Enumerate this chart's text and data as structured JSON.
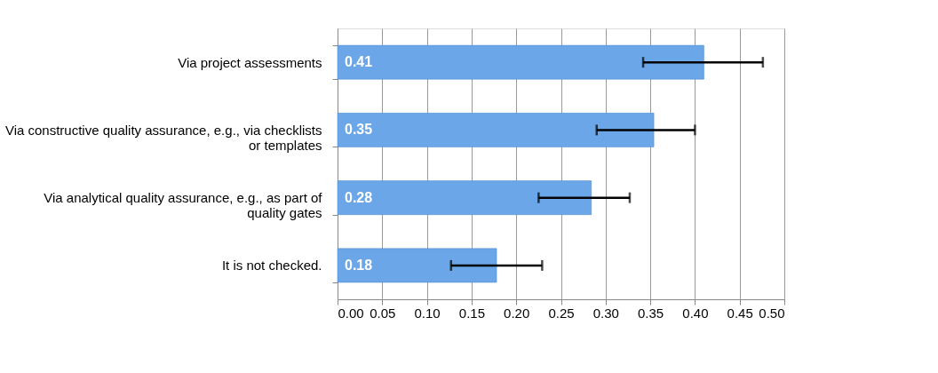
{
  "chart_data": {
    "type": "bar",
    "orientation": "horizontal",
    "categories": [
      "Via project assessments",
      "Via constructive quality assurance, e.g., via checklists or templates",
      "Via analytical quality assurance, e.g., as part of quality gates",
      "It is not checked."
    ],
    "values": [
      0.41,
      0.354,
      0.284,
      0.178
    ],
    "value_labels": [
      "0.41",
      "0.35",
      "0.28",
      "0.18"
    ],
    "errors": [
      [
        0.342,
        0.476
      ],
      [
        0.29,
        0.4
      ],
      [
        0.225,
        0.327
      ],
      [
        0.127,
        0.229
      ]
    ],
    "color": "#6aa6e8",
    "xlim": [
      0,
      0.5
    ],
    "xticks": [
      {
        "value": 0,
        "label": "0.00"
      },
      {
        "value": 0.05,
        "label": "0.05"
      },
      {
        "value": 0.1,
        "label": "0.10"
      },
      {
        "value": 0.15,
        "label": "0.15"
      },
      {
        "value": 0.2,
        "label": "0.20"
      },
      {
        "value": 0.25,
        "label": "0.25"
      },
      {
        "value": 0.3,
        "label": "0.30"
      },
      {
        "value": 0.35,
        "label": "0.35"
      },
      {
        "value": 0.4,
        "label": "0.40"
      },
      {
        "value": 0.45,
        "label": "0.45"
      },
      {
        "value": 0.5,
        "label": "0.50"
      }
    ],
    "grid": "x"
  }
}
